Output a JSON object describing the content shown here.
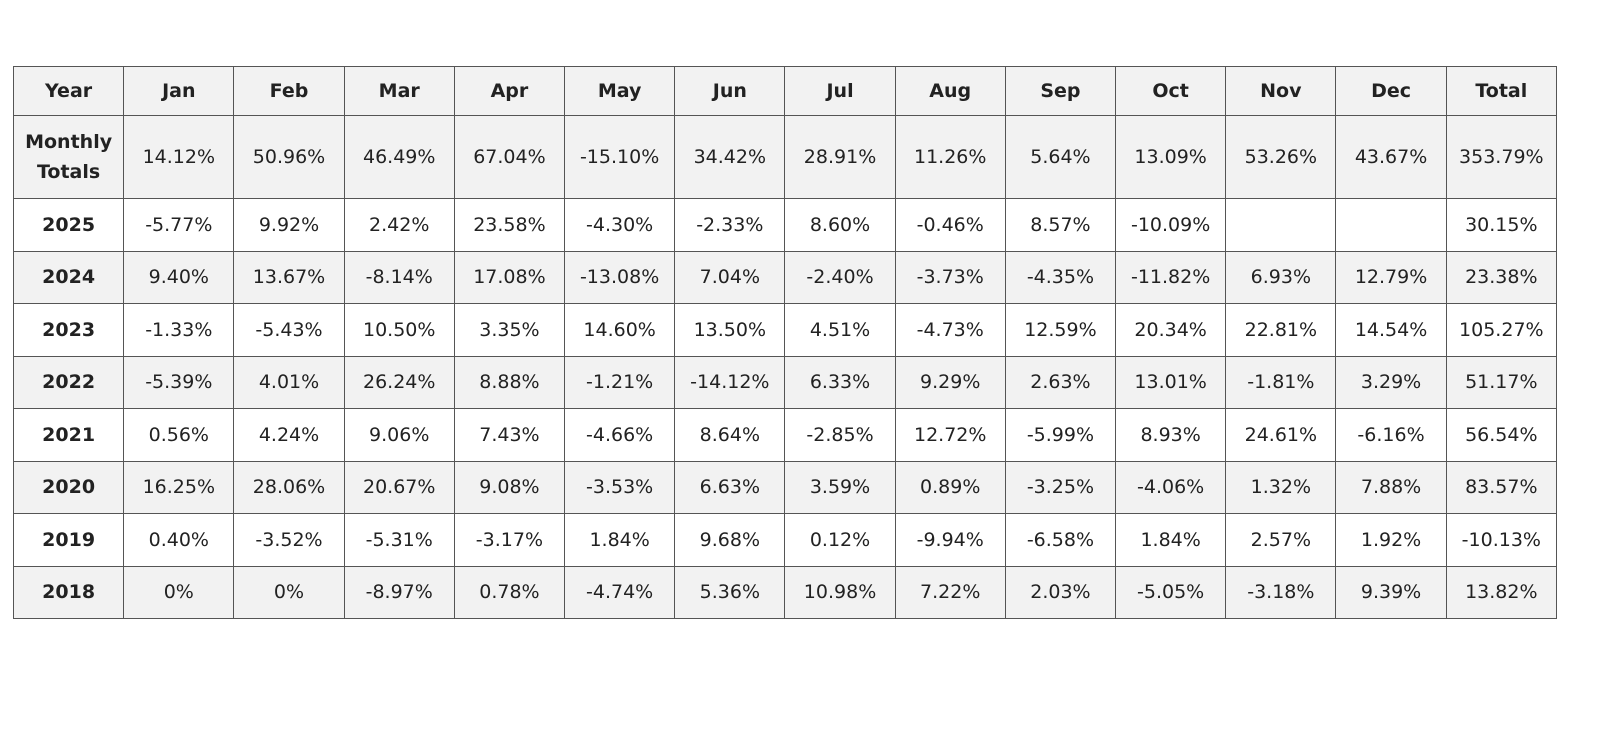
{
  "table": {
    "header": [
      "Year",
      "Jan",
      "Feb",
      "Mar",
      "Apr",
      "May",
      "Jun",
      "Jul",
      "Aug",
      "Sep",
      "Oct",
      "Nov",
      "Dec",
      "Total"
    ],
    "rows": [
      [
        "Monthly Totals",
        "14.12%",
        "50.96%",
        "46.49%",
        "67.04%",
        "-15.10%",
        "34.42%",
        "28.91%",
        "11.26%",
        "5.64%",
        "13.09%",
        "53.26%",
        "43.67%",
        "353.79%"
      ],
      [
        "2025",
        "-5.77%",
        "9.92%",
        "2.42%",
        "23.58%",
        "-4.30%",
        "-2.33%",
        "8.60%",
        "-0.46%",
        "8.57%",
        "-10.09%",
        null,
        null,
        "30.15%"
      ],
      [
        "2024",
        "9.40%",
        "13.67%",
        "-8.14%",
        "17.08%",
        "-13.08%",
        "7.04%",
        "-2.40%",
        "-3.73%",
        "-4.35%",
        "-11.82%",
        "6.93%",
        "12.79%",
        "23.38%"
      ],
      [
        "2023",
        "-1.33%",
        "-5.43%",
        "10.50%",
        "3.35%",
        "14.60%",
        "13.50%",
        "4.51%",
        "-4.73%",
        "12.59%",
        "20.34%",
        "22.81%",
        "14.54%",
        "105.27%"
      ],
      [
        "2022",
        "-5.39%",
        "4.01%",
        "26.24%",
        "8.88%",
        "-1.21%",
        "-14.12%",
        "6.33%",
        "9.29%",
        "2.63%",
        "13.01%",
        "-1.81%",
        "3.29%",
        "51.17%"
      ],
      [
        "2021",
        "0.56%",
        "4.24%",
        "9.06%",
        "7.43%",
        "-4.66%",
        "8.64%",
        "-2.85%",
        "12.72%",
        "-5.99%",
        "8.93%",
        "24.61%",
        "-6.16%",
        "56.54%"
      ],
      [
        "2020",
        "16.25%",
        "28.06%",
        "20.67%",
        "9.08%",
        "-3.53%",
        "6.63%",
        "3.59%",
        "0.89%",
        "-3.25%",
        "-4.06%",
        "1.32%",
        "7.88%",
        "83.57%"
      ],
      [
        "2019",
        "0.40%",
        "-3.52%",
        "-5.31%",
        "-3.17%",
        "1.84%",
        "9.68%",
        "0.12%",
        "-9.94%",
        "-6.58%",
        "1.84%",
        "2.57%",
        "1.92%",
        "-10.13%"
      ],
      [
        "2018",
        "0%",
        "0%",
        "-8.97%",
        "0.78%",
        "-4.74%",
        "5.36%",
        "10.98%",
        "7.22%",
        "2.03%",
        "-5.05%",
        "-3.18%",
        "9.39%",
        "13.82%"
      ]
    ]
  }
}
